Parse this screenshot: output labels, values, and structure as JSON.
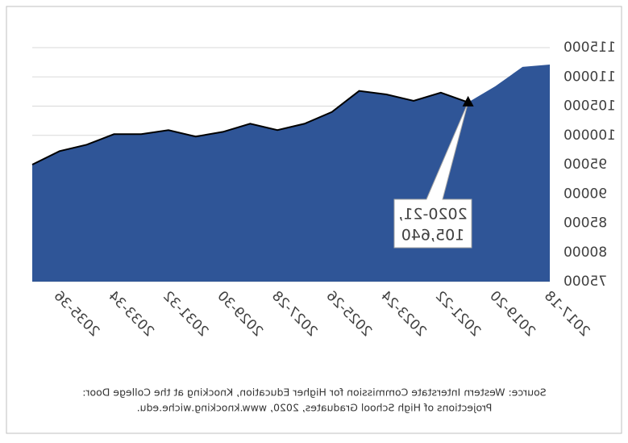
{
  "chart_data": {
    "type": "area",
    "categories": [
      "2017-18",
      null,
      "2019-20",
      null,
      "2021-22",
      null,
      "2023-24",
      null,
      "2025-26",
      null,
      "2027-28",
      null,
      "2029-30",
      null,
      "2031-32",
      null,
      "2033-34",
      null,
      "2035-36",
      null
    ],
    "values": [
      112100,
      111700,
      108400,
      105640,
      107300,
      105900,
      107000,
      107600,
      104000,
      102000,
      100900,
      102000,
      100600,
      99800,
      100900,
      100200,
      100200,
      98400,
      97300,
      95000
    ],
    "color": "#2f5597",
    "ylim": [
      75000,
      115000
    ],
    "yticks": [
      75000,
      80000,
      85000,
      90000,
      95000,
      100000,
      105000,
      110000,
      115000
    ],
    "grid": true,
    "mirrored": true,
    "annotation": {
      "lines": [
        "2020-21,",
        "105,640"
      ]
    },
    "source": [
      "Source: Western Interstate Commission for Higher Education, Knocking at the College Door:",
      "Projections of High School Graduates, 2020, www.knocking.wiche.edu."
    ]
  }
}
